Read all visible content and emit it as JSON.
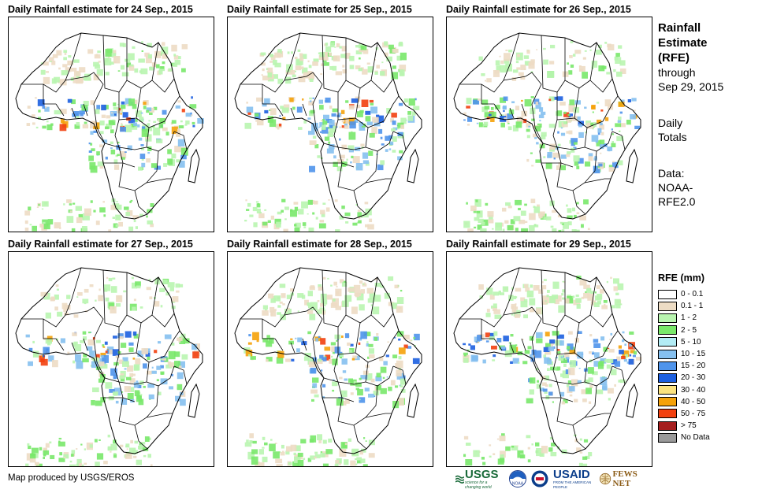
{
  "panels": [
    {
      "title": "Daily Rainfall estimate for 24 Sep., 2015",
      "seed": 24
    },
    {
      "title": "Daily Rainfall estimate for 25 Sep., 2015",
      "seed": 25
    },
    {
      "title": "Daily Rainfall estimate for 26 Sep., 2015",
      "seed": 26
    },
    {
      "title": "Daily Rainfall estimate for 27 Sep., 2015",
      "seed": 27
    },
    {
      "title": "Daily Rainfall estimate for 28 Sep., 2015",
      "seed": 28
    },
    {
      "title": "Daily Rainfall estimate for 29 Sep., 2015",
      "seed": 29
    }
  ],
  "side": {
    "title_1": "Rainfall",
    "title_2": "Estimate",
    "title_3": "(RFE)",
    "through_1": "through",
    "through_2": "Sep 29, 2015",
    "daily_1": "Daily",
    "daily_2": "Totals",
    "data_1": "Data:",
    "data_2": "NOAA-",
    "data_3": "RFE2.0"
  },
  "legend": {
    "title": "RFE (mm)",
    "items": [
      {
        "label": "0 - 0.1",
        "color": "#ffffff"
      },
      {
        "label": "0.1 - 1",
        "color": "#eddcc4"
      },
      {
        "label": "1 - 2",
        "color": "#b9f5b0"
      },
      {
        "label": "2 - 5",
        "color": "#79e86a"
      },
      {
        "label": "5 - 10",
        "color": "#b2ecf5"
      },
      {
        "label": "10 - 15",
        "color": "#85c0f0"
      },
      {
        "label": "15 - 20",
        "color": "#4f94eb"
      },
      {
        "label": "20 - 30",
        "color": "#1c5fe0"
      },
      {
        "label": "30 - 40",
        "color": "#fbe27e"
      },
      {
        "label": "40 - 50",
        "color": "#f5a20a"
      },
      {
        "label": "50 - 75",
        "color": "#f2400f"
      },
      {
        "label": "> 75",
        "color": "#a51e1e"
      },
      {
        "label": "No Data",
        "color": "#9a9a9a"
      }
    ]
  },
  "credit": "Map produced by USGS/EROS",
  "logos": {
    "usgs": "USGS",
    "usgs_tagline": "science for a changing world",
    "noaa": "NOAA",
    "usaid": "USAID",
    "usaid_tagline": "FROM THE AMERICAN PEOPLE",
    "fewsnet": "FEWS NET"
  }
}
